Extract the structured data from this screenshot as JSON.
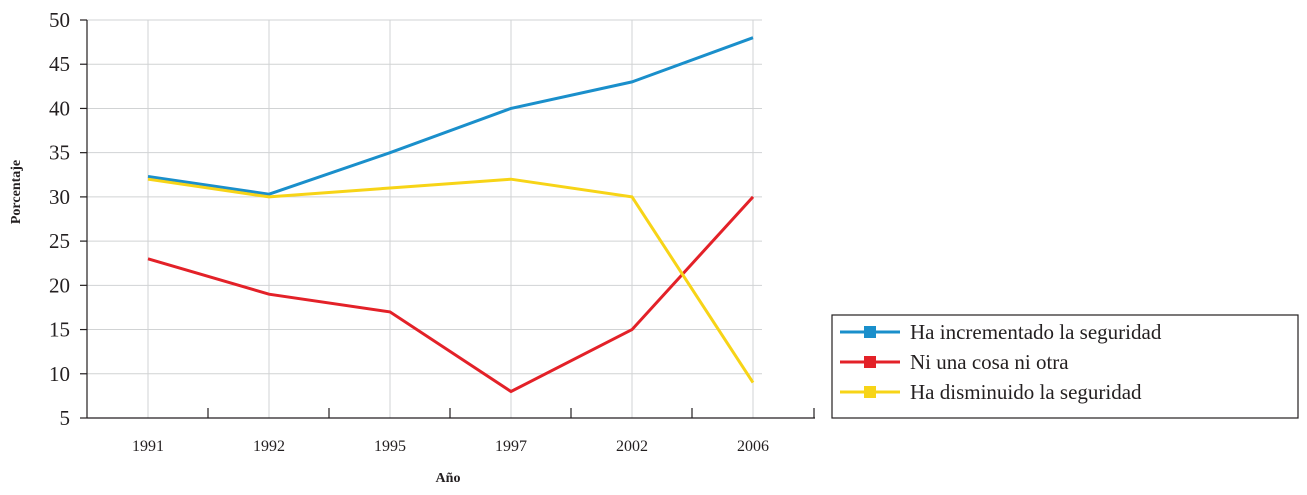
{
  "chart_data": {
    "type": "line",
    "title": "",
    "xlabel": "Año",
    "ylabel": "Porcentaje",
    "categories": [
      "1991",
      "1992",
      "1995",
      "1997",
      "2002",
      "2006"
    ],
    "ylim": [
      5,
      50
    ],
    "yticks": [
      5,
      10,
      15,
      20,
      25,
      30,
      35,
      40,
      45,
      50
    ],
    "grid": true,
    "legend_position": "right",
    "series": [
      {
        "name": "Ha incrementado la seguridad",
        "color": "#1a8fcb",
        "values": [
          32.3,
          30.3,
          35,
          40,
          43,
          48
        ]
      },
      {
        "name": "Ni una cosa ni otra",
        "color": "#e32128",
        "values": [
          23,
          19,
          17,
          8,
          15,
          30
        ]
      },
      {
        "name": "Ha disminuido la seguridad",
        "color": "#f7d417",
        "values": [
          32,
          30,
          31,
          32,
          30,
          9
        ]
      }
    ]
  }
}
